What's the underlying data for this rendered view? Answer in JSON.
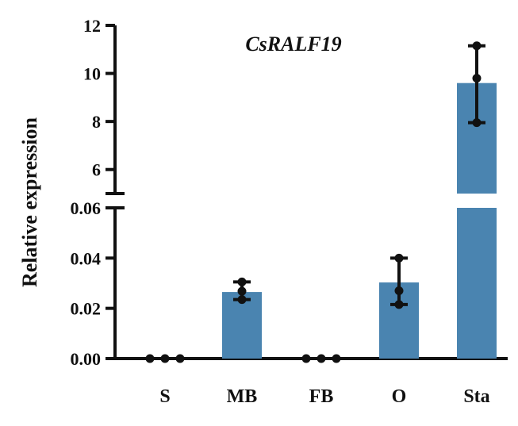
{
  "chart_data": {
    "type": "bar",
    "title": "CsRALF19",
    "ylabel": "Relative expression",
    "xlabel": "",
    "categories": [
      "S",
      "MB",
      "FB",
      "O",
      "Sta"
    ],
    "values": [
      0.0,
      0.0265,
      0.0,
      0.0303,
      9.6
    ],
    "error_low": [
      0.0,
      0.0235,
      0.0,
      0.0215,
      7.95
    ],
    "error_high": [
      0.0,
      0.0305,
      0.0,
      0.04,
      11.15
    ],
    "points": [
      [
        0.0,
        0.0,
        0.0
      ],
      [
        0.0235,
        0.0268,
        0.0305
      ],
      [
        0.0,
        0.0,
        0.0
      ],
      [
        0.0215,
        0.027,
        0.04
      ],
      [
        7.95,
        9.8,
        11.15
      ]
    ],
    "axis_break": true,
    "lower_segment": {
      "ylim": [
        0,
        0.06
      ],
      "ticks": [
        "0.00",
        "0.02",
        "0.04",
        "0.06"
      ]
    },
    "upper_segment": {
      "ylim": [
        5,
        12
      ],
      "ticks": [
        "6",
        "8",
        "10",
        "12"
      ]
    },
    "bar_color": "#4a84b0",
    "grid": false,
    "legend": "none"
  }
}
